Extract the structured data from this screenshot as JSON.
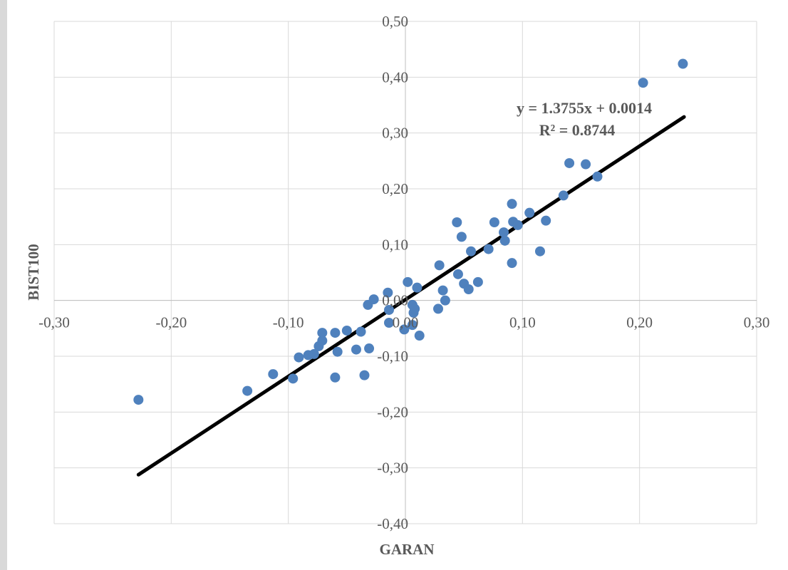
{
  "chart_data": {
    "type": "scatter",
    "title": "",
    "xlabel": "GARAN",
    "ylabel": "BIST100",
    "xlim": [
      -0.3,
      0.3
    ],
    "ylim": [
      -0.4,
      0.5
    ],
    "x_ticks": [
      -0.3,
      -0.2,
      -0.1,
      0.0,
      0.1,
      0.2,
      0.3
    ],
    "y_ticks": [
      0.5,
      0.4,
      0.3,
      0.2,
      0.1,
      0.0,
      -0.1,
      -0.2,
      -0.3,
      -0.4
    ],
    "x_tick_labels": [
      "-0,30",
      "-0,20",
      "-0,10",
      "0,00",
      "0,10",
      "0,20",
      "0,30"
    ],
    "y_tick_labels": [
      "0,50",
      "0,40",
      "0,30",
      "0,20",
      "0,10",
      "0,00",
      "-0,10",
      "-0,20",
      "-0,30",
      "-0,40"
    ],
    "grid": true,
    "legend": "none",
    "point_color": "#4f81bd",
    "trendline_color": "#000000",
    "trendline": {
      "slope": 1.3755,
      "intercept": 0.0014,
      "x_range": [
        -0.228,
        0.238
      ],
      "equation_label": "y = 1.3755x + 0.0014",
      "r2_label": "R² = 0.8744"
    },
    "series": [
      {
        "points": [
          [
            -0.228,
            -0.178
          ],
          [
            -0.135,
            -0.162
          ],
          [
            -0.113,
            -0.132
          ],
          [
            -0.096,
            -0.14
          ],
          [
            -0.091,
            -0.102
          ],
          [
            -0.083,
            -0.098
          ],
          [
            -0.078,
            -0.096
          ],
          [
            -0.074,
            -0.082
          ],
          [
            -0.071,
            -0.072
          ],
          [
            -0.071,
            -0.058
          ],
          [
            -0.06,
            -0.058
          ],
          [
            -0.058,
            -0.092
          ],
          [
            -0.06,
            -0.138
          ],
          [
            -0.05,
            -0.054
          ],
          [
            -0.042,
            -0.088
          ],
          [
            -0.038,
            -0.056
          ],
          [
            -0.035,
            -0.134
          ],
          [
            -0.031,
            -0.086
          ],
          [
            -0.032,
            -0.008
          ],
          [
            -0.027,
            0.002
          ],
          [
            -0.015,
            0.014
          ],
          [
            -0.014,
            -0.017
          ],
          [
            -0.014,
            -0.04
          ],
          [
            -0.001,
            -0.052
          ],
          [
            0.002,
            0.033
          ],
          [
            0.006,
            -0.008
          ],
          [
            0.006,
            -0.044
          ],
          [
            0.007,
            -0.022
          ],
          [
            0.008,
            -0.015
          ],
          [
            0.01,
            0.023
          ],
          [
            0.012,
            -0.063
          ],
          [
            0.028,
            -0.015
          ],
          [
            0.029,
            0.063
          ],
          [
            0.032,
            0.018
          ],
          [
            0.034,
            0.0
          ],
          [
            0.044,
            0.14
          ],
          [
            0.045,
            0.047
          ],
          [
            0.048,
            0.114
          ],
          [
            0.05,
            0.03
          ],
          [
            0.054,
            0.02
          ],
          [
            0.056,
            0.088
          ],
          [
            0.062,
            0.033
          ],
          [
            0.071,
            0.092
          ],
          [
            0.076,
            0.14
          ],
          [
            0.084,
            0.122
          ],
          [
            0.085,
            0.107
          ],
          [
            0.091,
            0.067
          ],
          [
            0.091,
            0.173
          ],
          [
            0.092,
            0.141
          ],
          [
            0.096,
            0.135
          ],
          [
            0.106,
            0.157
          ],
          [
            0.115,
            0.088
          ],
          [
            0.12,
            0.143
          ],
          [
            0.135,
            0.188
          ],
          [
            0.14,
            0.246
          ],
          [
            0.154,
            0.244
          ],
          [
            0.164,
            0.222
          ],
          [
            0.203,
            0.39
          ],
          [
            0.237,
            0.424
          ]
        ]
      }
    ]
  }
}
